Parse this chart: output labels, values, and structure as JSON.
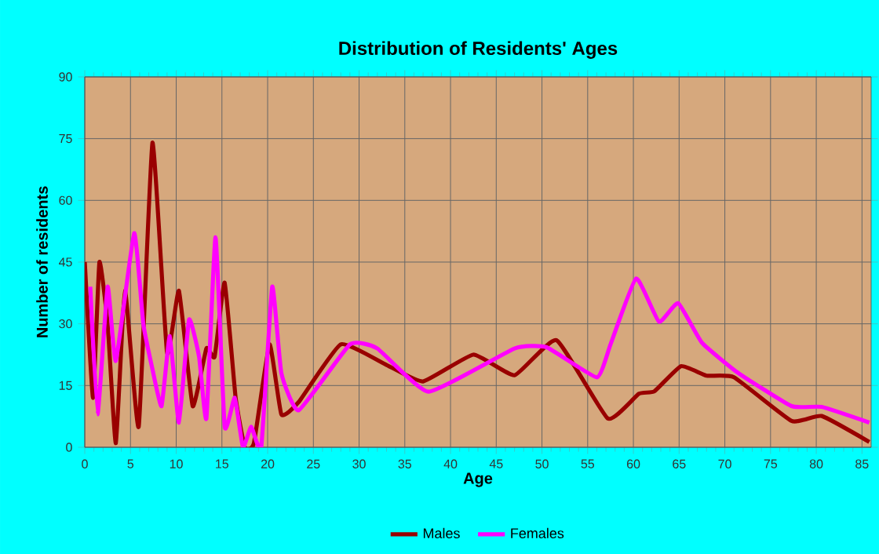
{
  "chart_data": {
    "type": "line",
    "title": "Distribution of Residents' Ages",
    "xlabel": "Age",
    "ylabel": "Number of residents",
    "xlim": [
      0,
      86
    ],
    "ylim": [
      0,
      90
    ],
    "xticks": [
      0,
      5,
      10,
      15,
      20,
      25,
      30,
      35,
      40,
      45,
      50,
      55,
      60,
      65,
      70,
      75,
      80,
      85
    ],
    "yticks": [
      0,
      15,
      30,
      45,
      60,
      75,
      90
    ],
    "grid": true,
    "legend": "bottom",
    "marker": "none",
    "line_style": "solid",
    "series": [
      {
        "name": "Males",
        "color": "#990000",
        "x": [
          0,
          0.9,
          1.6,
          2.5,
          3.4,
          4.4,
          5.9,
          7.4,
          9.0,
          10.3,
          11.8,
          13.3,
          14.2,
          15.3,
          16.5,
          17.5,
          18.5,
          20.2,
          21.5,
          23.4,
          28,
          33,
          37,
          42.5,
          47,
          51.6,
          57.2,
          60.6,
          62.3,
          65.2,
          68,
          71,
          77.3,
          80.6,
          85.8
        ],
        "values": [
          45,
          12,
          45,
          30,
          1,
          38,
          5,
          74,
          23,
          38,
          10,
          24,
          22,
          40,
          12,
          0,
          1,
          25,
          8,
          11,
          25,
          20,
          16,
          22.5,
          17.5,
          26,
          7,
          13,
          13.6,
          19.7,
          17.4,
          17,
          6.4,
          7.6,
          1.3
        ]
      },
      {
        "name": "Females",
        "color": "#ff00ff",
        "x": [
          0.6,
          1.4,
          2.5,
          3.4,
          5.4,
          6.4,
          7.4,
          8.4,
          9.3,
          10.3,
          11.4,
          12.5,
          13.3,
          14.3,
          15.3,
          16.4,
          17.3,
          18.2,
          19.3,
          20.5,
          21.5,
          23.4,
          29,
          32,
          37.6,
          47,
          50.5,
          56,
          57.5,
          60.3,
          62.8,
          64.9,
          67.5,
          71.5,
          77.3,
          80.6,
          85.8
        ],
        "values": [
          39,
          8,
          39,
          21,
          52,
          30,
          19,
          10,
          27,
          6,
          31,
          22,
          7,
          51,
          5,
          12,
          0,
          5,
          0,
          39,
          18,
          9,
          25,
          24,
          13.5,
          24,
          24.3,
          17,
          25,
          41,
          30.5,
          35,
          25.4,
          18,
          10,
          9.8,
          6
        ]
      }
    ]
  }
}
